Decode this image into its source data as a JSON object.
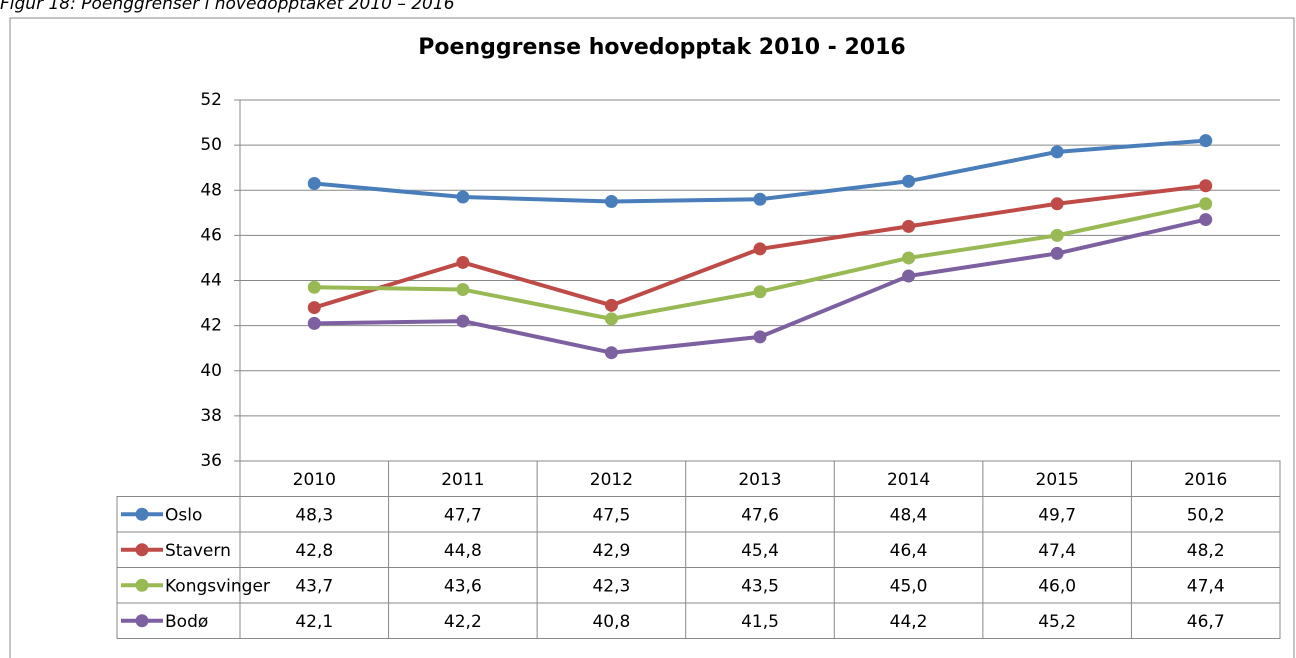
{
  "chart_data": {
    "type": "line",
    "caption": "Figur 18: Poenggrenser i hovedopptaket 2010 – 2016",
    "title": "Poenggrense hovedopptak 2010 - 2016",
    "categories": [
      "2010",
      "2011",
      "2012",
      "2013",
      "2014",
      "2015",
      "2016"
    ],
    "series": [
      {
        "name": "Oslo",
        "color": "#4a7ebb",
        "values": [
          48.3,
          47.7,
          47.5,
          47.6,
          48.4,
          49.7,
          50.2
        ],
        "value_labels": [
          "48,3",
          "47,7",
          "47,5",
          "47,6",
          "48,4",
          "49,7",
          "50,2"
        ]
      },
      {
        "name": "Stavern",
        "color": "#be4b48",
        "values": [
          42.8,
          44.8,
          42.9,
          45.4,
          46.4,
          47.4,
          48.2
        ],
        "value_labels": [
          "42,8",
          "44,8",
          "42,9",
          "45,4",
          "46,4",
          "47,4",
          "48,2"
        ]
      },
      {
        "name": "Kongsvinger",
        "color": "#98b954",
        "values": [
          43.7,
          43.6,
          42.3,
          43.5,
          45.0,
          46.0,
          47.4
        ],
        "value_labels": [
          "43,7",
          "43,6",
          "42,3",
          "43,5",
          "45,0",
          "46,0",
          "47,4"
        ]
      },
      {
        "name": "Bodø",
        "color": "#7d60a0",
        "values": [
          42.1,
          42.2,
          40.8,
          41.5,
          44.2,
          45.2,
          46.7
        ],
        "value_labels": [
          "42,1",
          "42,2",
          "40,8",
          "41,5",
          "44,2",
          "45,2",
          "46,7"
        ]
      }
    ],
    "ylim": [
      36,
      52
    ],
    "yticks": [
      36,
      38,
      40,
      42,
      44,
      46,
      48,
      50,
      52
    ],
    "grid": true
  }
}
